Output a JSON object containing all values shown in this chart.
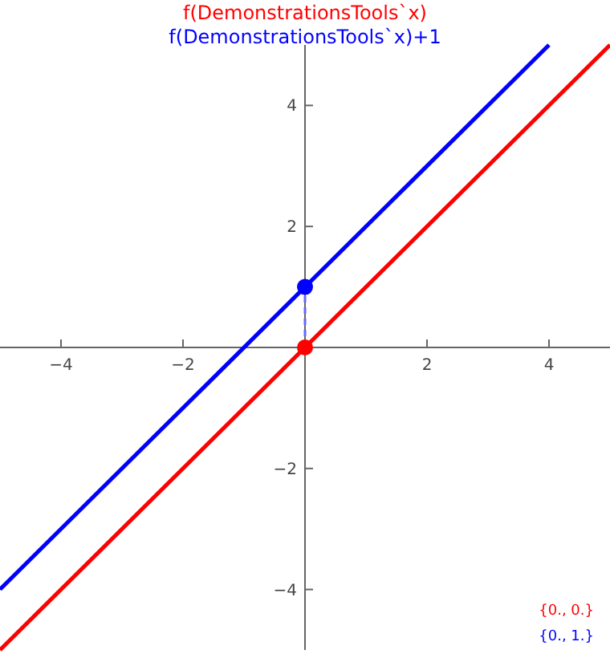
{
  "chart_data": {
    "type": "line",
    "title": "f(DemonstrationsTools`x)",
    "subtitle": "f(DemonstrationsTools`x)+1",
    "xlim": [
      -5,
      5
    ],
    "ylim": [
      -5,
      5
    ],
    "xticks": [
      {
        "value": -4,
        "label": "−4"
      },
      {
        "value": -2,
        "label": "−2"
      },
      2,
      4
    ],
    "yticks": [
      {
        "value": -4,
        "label": "−4"
      },
      {
        "value": -2,
        "label": "−2"
      },
      2,
      4
    ],
    "grid": false,
    "series": [
      {
        "color": "#ff0000",
        "x": [
          -5,
          5
        ],
        "values": [
          -5,
          5
        ]
      },
      {
        "color": "#0000ff",
        "x": [
          -5,
          4
        ],
        "values": [
          -4,
          5
        ]
      },
      {
        "type": "line",
        "line_style": "dashed",
        "color": "#6666ff",
        "x": [
          0,
          0
        ],
        "values": [
          0,
          1
        ]
      },
      {
        "type": "scatter",
        "marker": "circle",
        "color": "#ff0000",
        "x": [
          0
        ],
        "values": [
          0
        ]
      },
      {
        "type": "scatter",
        "marker": "circle",
        "color": "#0000ff",
        "x": [
          0
        ],
        "values": [
          1
        ]
      }
    ],
    "annotations": [
      "{0., 0.}",
      "{0., 1.}"
    ]
  }
}
